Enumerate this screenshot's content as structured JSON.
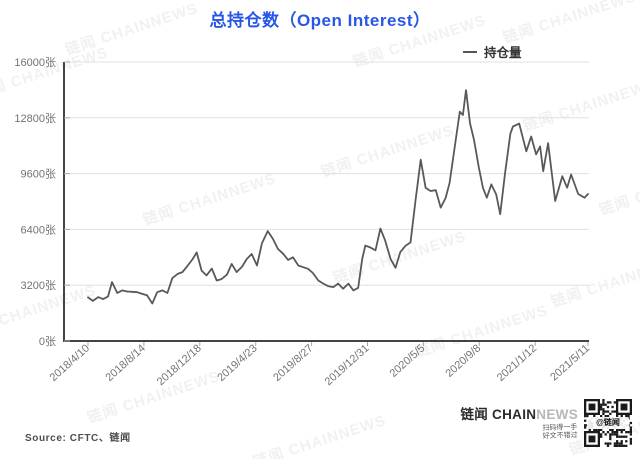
{
  "title": "总持仓数（Open Interest）",
  "legend": {
    "label": "持仓量",
    "line_color": "#555555"
  },
  "watermark_text": "链闻 CHAINNEWS",
  "source": "Source: CFTC、链闻",
  "footer": {
    "brand_cn": "链闻",
    "brand_en_dark": "CHAIN",
    "brand_en_light": "NEWS",
    "qr_caption_line1": "扫码得一手",
    "qr_caption_line2": "好文不错过",
    "qr_overlay": "@链闻"
  },
  "colors": {
    "title_blue": "#2857e8",
    "series_line": "#595959",
    "axis": "#444444",
    "grid": "#e0e0e0",
    "tick": "#aaaaaa",
    "label_gray": "#737373"
  },
  "chart_data": {
    "type": "line",
    "title": "总持仓数（Open Interest）",
    "series_name": "持仓量",
    "unit": "张",
    "ylim": [
      0,
      16000
    ],
    "y_tick_values": [
      0,
      3200,
      6400,
      9600,
      12800,
      16000
    ],
    "y_tick_labels": [
      "0张",
      "3200张",
      "6400张",
      "9600张",
      "12800张",
      "16000张"
    ],
    "x_tick_labels": [
      "2018/4/10",
      "2018/8/14",
      "2018/12/18",
      "2019/4/23",
      "2019/8/27",
      "2019/12/31",
      "2020/5/5",
      "2020/9/8",
      "2021/1/12",
      "2021/5/11"
    ],
    "grid": true,
    "legend_position": "top-right",
    "points": [
      [
        "2018/4/10",
        2500
      ],
      [
        "2018/4/21",
        2300
      ],
      [
        "2018/5/3",
        2520
      ],
      [
        "2018/5/14",
        2400
      ],
      [
        "2018/5/25",
        2550
      ],
      [
        "2018/6/3",
        3380
      ],
      [
        "2018/6/15",
        2750
      ],
      [
        "2018/6/26",
        2900
      ],
      [
        "2018/7/7",
        2840
      ],
      [
        "2018/7/18",
        2820
      ],
      [
        "2018/7/30",
        2800
      ],
      [
        "2018/8/10",
        2700
      ],
      [
        "2018/8/21",
        2620
      ],
      [
        "2018/9/2",
        2150
      ],
      [
        "2018/9/13",
        2800
      ],
      [
        "2018/9/25",
        2900
      ],
      [
        "2018/10/6",
        2750
      ],
      [
        "2018/10/17",
        3600
      ],
      [
        "2018/10/29",
        3850
      ],
      [
        "2018/11/9",
        3950
      ],
      [
        "2018/11/20",
        4300
      ],
      [
        "2018/12/2",
        4700
      ],
      [
        "2018/12/11",
        5080
      ],
      [
        "2018/12/22",
        4040
      ],
      [
        "2019/1/2",
        3760
      ],
      [
        "2019/1/14",
        4150
      ],
      [
        "2019/1/25",
        3470
      ],
      [
        "2019/2/5",
        3550
      ],
      [
        "2019/2/17",
        3800
      ],
      [
        "2019/2/28",
        4420
      ],
      [
        "2019/3/11",
        3950
      ],
      [
        "2019/3/23",
        4250
      ],
      [
        "2019/4/3",
        4700
      ],
      [
        "2019/4/14",
        4990
      ],
      [
        "2019/4/26",
        4330
      ],
      [
        "2019/5/7",
        5600
      ],
      [
        "2019/5/20",
        6300
      ],
      [
        "2019/6/1",
        5850
      ],
      [
        "2019/6/12",
        5280
      ],
      [
        "2019/6/24",
        5000
      ],
      [
        "2019/7/5",
        4650
      ],
      [
        "2019/7/16",
        4800
      ],
      [
        "2019/7/28",
        4330
      ],
      [
        "2019/8/8",
        4230
      ],
      [
        "2019/8/19",
        4140
      ],
      [
        "2019/8/30",
        3900
      ],
      [
        "2019/9/11",
        3470
      ],
      [
        "2019/9/22",
        3300
      ],
      [
        "2019/10/3",
        3150
      ],
      [
        "2019/10/15",
        3090
      ],
      [
        "2019/10/26",
        3290
      ],
      [
        "2019/11/6",
        3000
      ],
      [
        "2019/11/18",
        3290
      ],
      [
        "2019/11/29",
        2900
      ],
      [
        "2019/12/10",
        3050
      ],
      [
        "2019/12/19",
        4700
      ],
      [
        "2019/12/26",
        5470
      ],
      [
        "2020/1/6",
        5370
      ],
      [
        "2020/1/18",
        5200
      ],
      [
        "2020/1/29",
        6450
      ],
      [
        "2020/2/9",
        5750
      ],
      [
        "2020/2/21",
        4700
      ],
      [
        "2020/3/3",
        4200
      ],
      [
        "2020/3/14",
        5100
      ],
      [
        "2020/3/26",
        5470
      ],
      [
        "2020/4/6",
        5650
      ],
      [
        "2020/4/17",
        8000
      ],
      [
        "2020/4/29",
        10400
      ],
      [
        "2020/5/10",
        8790
      ],
      [
        "2020/5/21",
        8600
      ],
      [
        "2020/6/2",
        8650
      ],
      [
        "2020/6/13",
        7650
      ],
      [
        "2020/6/24",
        8200
      ],
      [
        "2020/7/3",
        9070
      ],
      [
        "2020/7/15",
        11200
      ],
      [
        "2020/7/26",
        13150
      ],
      [
        "2020/8/2",
        12960
      ],
      [
        "2020/8/9",
        14390
      ],
      [
        "2020/8/18",
        12490
      ],
      [
        "2020/8/27",
        11540
      ],
      [
        "2020/9/7",
        9930
      ],
      [
        "2020/9/16",
        8790
      ],
      [
        "2020/9/25",
        8220
      ],
      [
        "2020/10/5",
        8980
      ],
      [
        "2020/10/16",
        8400
      ],
      [
        "2020/10/25",
        7270
      ],
      [
        "2020/11/5",
        9600
      ],
      [
        "2020/11/17",
        11900
      ],
      [
        "2020/11/23",
        12300
      ],
      [
        "2020/12/7",
        12470
      ],
      [
        "2020/12/23",
        10880
      ],
      [
        "2021/1/3",
        11730
      ],
      [
        "2021/1/14",
        10700
      ],
      [
        "2021/1/23",
        11160
      ],
      [
        "2021/1/30",
        9740
      ],
      [
        "2021/2/10",
        11350
      ],
      [
        "2021/2/26",
        8030
      ],
      [
        "2021/3/14",
        9450
      ],
      [
        "2021/3/25",
        8790
      ],
      [
        "2021/4/3",
        9550
      ],
      [
        "2021/4/19",
        8430
      ],
      [
        "2021/5/3",
        8220
      ],
      [
        "2021/5/11",
        8430
      ]
    ]
  }
}
